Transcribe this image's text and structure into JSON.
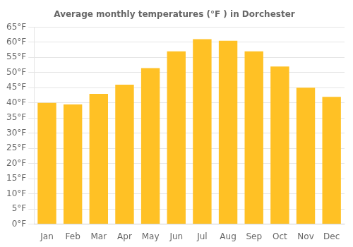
{
  "chart_data": {
    "type": "bar",
    "title": "Average monthly temperatures (°F ) in Dorchester",
    "categories": [
      "Jan",
      "Feb",
      "Mar",
      "Apr",
      "May",
      "Jun",
      "Jul",
      "Aug",
      "Sep",
      "Oct",
      "Nov",
      "Dec"
    ],
    "values": [
      40,
      39.5,
      43,
      46,
      51.5,
      57,
      61,
      60.5,
      57,
      52,
      45,
      42
    ],
    "color": "#FFC125",
    "ylim": [
      0,
      65
    ],
    "yticks": [
      {
        "value": 0,
        "label": "0°F"
      },
      {
        "value": 5,
        "label": "5°F"
      },
      {
        "value": 10,
        "label": "10°F"
      },
      {
        "value": 15,
        "label": "15°F"
      },
      {
        "value": 20,
        "label": "20°F"
      },
      {
        "value": 25,
        "label": "25°F"
      },
      {
        "value": 30,
        "label": "30°F"
      },
      {
        "value": 35,
        "label": "35°F"
      },
      {
        "value": 40,
        "label": "40°F"
      },
      {
        "value": 45,
        "label": "45°F"
      },
      {
        "value": 50,
        "label": "50°F"
      },
      {
        "value": 55,
        "label": "55°F"
      },
      {
        "value": 60,
        "label": "60°F"
      },
      {
        "value": 65,
        "label": "65°F"
      }
    ],
    "grid": true
  }
}
